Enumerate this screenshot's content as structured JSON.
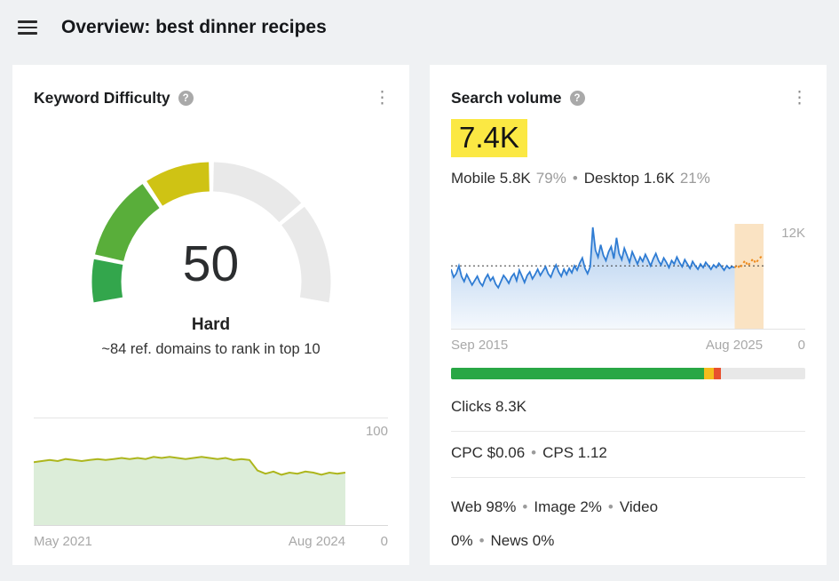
{
  "header": {
    "title": "Overview: best dinner recipes"
  },
  "icons": {
    "help_glyph": "?",
    "kebab_glyph": "⋮"
  },
  "keyword_difficulty_card": {
    "title": "Keyword Difficulty",
    "value": "50",
    "difficulty_label": "Hard",
    "subtitle": "~84 ref. domains to rank in top 10",
    "gauge": {
      "min": 0,
      "max": 100,
      "value": 50,
      "segments": [
        {
          "from": 0,
          "to": 11,
          "color": "#33a64c"
        },
        {
          "from": 11,
          "to": 33,
          "color": "#59ae3a"
        },
        {
          "from": 33,
          "to": 50,
          "color": "#cfc314"
        },
        {
          "from": 50,
          "to": 75,
          "color": "#e9e9e9"
        },
        {
          "from": 75,
          "to": 100,
          "color": "#e9e9e9"
        }
      ]
    },
    "history_chart": {
      "type": "area",
      "line_color": "#adb61d",
      "fill_color": "rgba(130,190,120,0.28)",
      "x_start_label": "May 2021",
      "x_end_label": "Aug 2024",
      "y_max_label": "100",
      "y_min_label": "0",
      "ylim": [
        0,
        100
      ],
      "values": [
        60,
        61,
        62,
        61,
        63,
        62,
        61,
        62,
        63,
        62,
        63,
        64,
        63,
        64,
        63,
        65,
        64,
        65,
        64,
        63,
        64,
        65,
        64,
        63,
        64,
        62,
        63,
        62,
        52,
        49,
        51,
        48,
        50,
        49,
        51,
        50,
        48,
        50,
        49,
        50
      ]
    }
  },
  "search_volume_card": {
    "title": "Search volume",
    "value": "7.4K",
    "highlight_color": "#fbe843",
    "separator": "•",
    "device_breakdown": {
      "mobile_label": "Mobile 5.8K",
      "mobile_percent": "79%",
      "desktop_label": "Desktop 1.6K",
      "desktop_percent": "21%"
    },
    "volume_chart": {
      "type": "line",
      "line_color": "#2f7cd3",
      "forecast_color": "#ef8b1d",
      "forecast_bg": "#fae3c3",
      "average_line_color": "#3a3a3a",
      "x_start_label": "Sep 2015",
      "x_end_label": "Aug 2025",
      "y_max_label": "12K",
      "y_min_label": "0",
      "ylim": [
        0,
        12
      ],
      "average_value": 7.2,
      "forecast_start_index": 108,
      "values": [
        6.8,
        5.9,
        6.3,
        7.2,
        6.0,
        5.4,
        6.2,
        5.6,
        5.0,
        5.5,
        6.0,
        5.3,
        4.9,
        5.7,
        6.2,
        5.5,
        5.9,
        5.1,
        4.7,
        5.4,
        6.1,
        5.7,
        5.2,
        5.9,
        6.3,
        5.5,
        6.7,
        6.0,
        5.3,
        6.1,
        6.5,
        5.7,
        6.2,
        6.8,
        6.1,
        6.6,
        7.1,
        6.3,
        5.9,
        6.7,
        7.3,
        6.5,
        6.0,
        6.8,
        6.2,
        6.9,
        6.4,
        7.2,
        6.7,
        7.5,
        8.1,
        6.9,
        6.3,
        7.1,
        11.6,
        9.0,
        8.2,
        9.6,
        8.4,
        7.8,
        8.8,
        9.4,
        8.0,
        10.4,
        8.6,
        7.9,
        9.2,
        8.4,
        7.6,
        8.8,
        8.1,
        7.4,
        8.2,
        7.7,
        8.5,
        7.9,
        7.2,
        8.0,
        8.6,
        7.8,
        7.3,
        8.1,
        7.6,
        7.0,
        7.8,
        7.4,
        8.2,
        7.6,
        7.1,
        7.9,
        7.4,
        6.9,
        7.7,
        7.2,
        6.8,
        7.4,
        7.0,
        7.6,
        7.2,
        6.8,
        7.3,
        7.0,
        7.5,
        7.1,
        6.7,
        7.2,
        6.9,
        7.1,
        7.0,
        7.3,
        6.9,
        7.4,
        7.8,
        7.2,
        7.6,
        8.0,
        7.5,
        7.9,
        8.2,
        8.0
      ]
    },
    "clicks_bar": {
      "segments": [
        {
          "name": "organic",
          "color": "#29a745",
          "percent": 71.5
        },
        {
          "name": "paid",
          "color": "#f5bc1c",
          "percent": 2.8
        },
        {
          "name": "other",
          "color": "#e8502e",
          "percent": 2.0
        },
        {
          "name": "rest",
          "color": "#e8e8e8",
          "percent": 23.7
        }
      ]
    },
    "clicks_label": "Clicks 8.3K",
    "cpc_label": "CPC $0.06",
    "cps_label": "CPS 1.12",
    "serp_breakdown": [
      "Web 98%",
      "Image 2%",
      "Video 0%",
      "News 0%"
    ]
  }
}
